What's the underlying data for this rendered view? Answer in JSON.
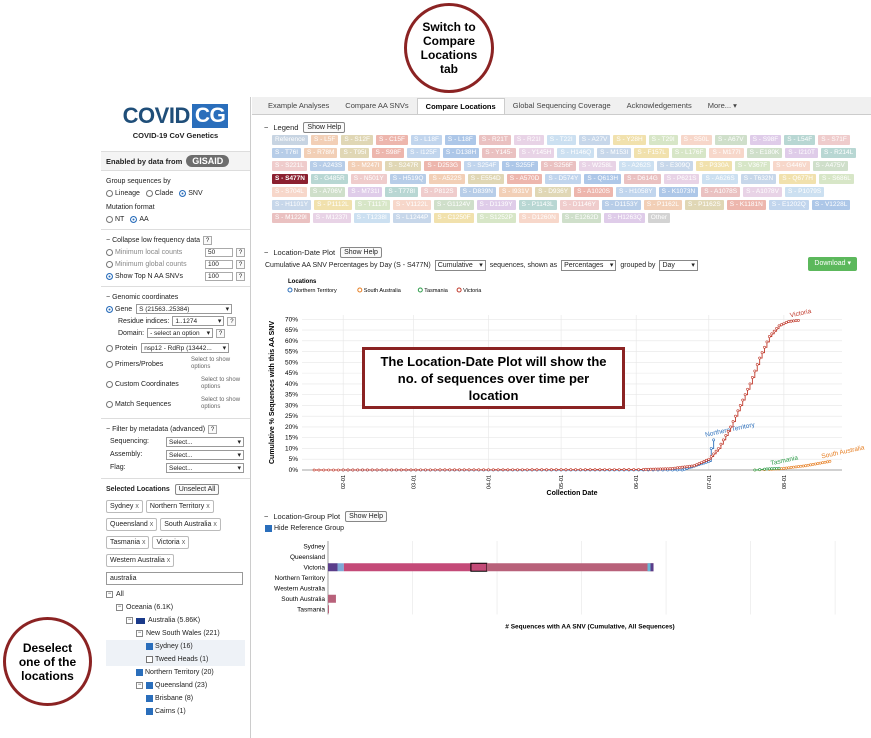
{
  "callouts": {
    "tab": "Switch to Compare Locations tab",
    "plot": "The Location-Date Plot will show the no. of sequences over time per location",
    "deselect": "Deselect one of the locations"
  },
  "sidebar": {
    "logo_main": "COVID",
    "logo_cg": "CG",
    "logo_sub": "COVID-19 CoV Genetics",
    "enabled_by": "Enabled by data from",
    "gisaid": "GISAID",
    "group_by": {
      "label": "Group sequences by",
      "options": [
        "Lineage",
        "Clade",
        "SNV"
      ],
      "selected": "SNV"
    },
    "mutation_format": {
      "label": "Mutation format",
      "options": [
        "NT",
        "AA"
      ],
      "selected": "AA"
    },
    "low_freq": {
      "title": "Collapse low frequency data",
      "help": "?",
      "rows": [
        {
          "label": "Minimum local counts",
          "value": "50"
        },
        {
          "label": "Minimum global counts",
          "value": "100"
        },
        {
          "label": "Show Top N AA SNVs",
          "value": "100"
        }
      ]
    },
    "genomic": {
      "title": "Genomic coordinates",
      "gene_label": "Gene",
      "gene_value": "S  (21563..25384)",
      "residue_label": "Residue indices:",
      "residue_value": "1..1274",
      "domain_label": "Domain:",
      "domain_value": "- select an option",
      "protein_label": "Protein",
      "protein_value": "nsp12 - RdRp  (13442...",
      "primers_label": "Primers/Probes",
      "custom_label": "Custom Coordinates",
      "match_label": "Match Sequences",
      "select_note": "Select to show options"
    },
    "metadata": {
      "title": "Filter by metadata (advanced)",
      "help": "?",
      "rows": [
        {
          "label": "Sequencing:",
          "value": "Select..."
        },
        {
          "label": "Assembly:",
          "value": "Select..."
        },
        {
          "label": "Flag:",
          "value": "Select..."
        }
      ]
    },
    "locations": {
      "title": "Selected Locations",
      "unselect_all": "Unselect All",
      "selected": [
        "Sydney",
        "Northern Territory",
        "Queensland",
        "South Australia",
        "Tasmania",
        "Victoria",
        "Western Australia"
      ],
      "remove_glyph": "x",
      "search_value": "australia",
      "tree": [
        {
          "label": "All",
          "toggle": "−",
          "level": 0
        },
        {
          "label": "Oceania  (6.1K)",
          "toggle": "−",
          "level": 1
        },
        {
          "label": "Australia  (5.86K)",
          "toggle": "−",
          "level": 2,
          "flag": true
        },
        {
          "label": "New South Wales  (221)",
          "toggle": "−",
          "level": 3
        },
        {
          "label": "Sydney  (16)",
          "check": true,
          "level": 4,
          "hl": true
        },
        {
          "label": "Tweed Heads  (1)",
          "check": false,
          "level": 4,
          "hl": true
        },
        {
          "label": "Northern Territory  (20)",
          "check": true,
          "level": 3
        },
        {
          "label": "Queensland  (23)",
          "check": true,
          "level": 3,
          "toggle": "−"
        },
        {
          "label": "Brisbane  (8)",
          "check": true,
          "level": 4
        },
        {
          "label": "Cairns  (1)",
          "check": true,
          "level": 4
        }
      ]
    }
  },
  "tabs": [
    "Example Analyses",
    "Compare AA SNVs",
    "Compare Locations",
    "Global Sequencing Coverage",
    "Acknowledgements",
    "More..."
  ],
  "active_tab": "Compare Locations",
  "legend": {
    "title": "Legend",
    "show_help": "Show Help",
    "items": [
      "Reference",
      "S - L5F",
      "S - S12F",
      "S - C15F",
      "S - L18F",
      "S - L18F",
      "S - R21T",
      "S - R21I",
      "S - T22I",
      "S - A27V",
      "S - Y28H",
      "S - T29I",
      "S - S50L",
      "S - A67V",
      "S - S98F",
      "S - L54F",
      "S - S71F",
      "S - T76I",
      "S - R78M",
      "S - T95I",
      "S - S98F",
      "S - I125F",
      "S - D138H",
      "S - Y145-",
      "S - Y145H",
      "S - H146Q",
      "S - M153I",
      "S - F157L",
      "S - L176F",
      "S - M177I",
      "S - E180K",
      "S - I210T",
      "S - R214L",
      "S - S221L",
      "S - A243S",
      "S - M247I",
      "S - S247R",
      "S - D253G",
      "S - S254F",
      "S - S255F",
      "S - S256F",
      "S - W258L",
      "S - A262S",
      "S - E309Q",
      "S - P330A",
      "S - V367F",
      "S - G446V",
      "S - A475V",
      "S - S477N",
      "S - G485R",
      "S - N501Y",
      "S - H519Q",
      "S - A522S",
      "S - E554D",
      "S - A570D",
      "S - D574Y",
      "S - Q613H",
      "S - D614G",
      "S - P621S",
      "S - A626S",
      "S - T632N",
      "S - Q677H",
      "S - S686L",
      "S - S704L",
      "S - A706V",
      "S - M731I",
      "S - T778I",
      "S - P812S",
      "S - D839N",
      "S - I931V",
      "S - D936Y",
      "S - A1020S",
      "S - H1058Y",
      "S - K1073N",
      "S - A1078S",
      "S - A1078V",
      "S - P1079S",
      "S - H1101Y",
      "S - P1112L",
      "S - T1117I",
      "S - V1122L",
      "S - G1124V",
      "S - D1139Y",
      "S - P1143L",
      "S - D1146Y",
      "S - D1153Y",
      "S - P1162L",
      "S - P1162S",
      "S - K1181N",
      "S - E1202Q",
      "S - V1228L",
      "S - M1229I",
      "S - M1237I",
      "S - T1238I",
      "S - L1244P",
      "S - C1250F",
      "S - S1252P",
      "S - D1260N",
      "S - E1262D",
      "S - H1263Q",
      "Other"
    ],
    "selected_item": "S - S477N"
  },
  "location_date": {
    "title": "Location-Date Plot",
    "show_help": "Show Help",
    "toolbar_prefix": "Cumulative AA SNV Percentages by Day (S - S477N)",
    "mode": "Cumulative",
    "mid1": "sequences, shown as",
    "unit": "Percentages",
    "mid2": "grouped by",
    "group": "Day",
    "download": "Download"
  },
  "location_group": {
    "title": "Location-Group Plot",
    "show_help": "Show Help",
    "hide_ref": "Hide Reference Group"
  },
  "colors": {
    "victoria": "#c0392b",
    "northern_territory": "#2c6fbb",
    "tasmania": "#2e9c4a",
    "south_australia": "#e67e22",
    "accent_red": "#8b2323"
  },
  "chart_data": [
    {
      "type": "line",
      "title": "",
      "xlabel": "Collection Date",
      "ylabel": "Cumulative % Sequences with this AA SNV",
      "x_ticks": [
        "02-01",
        "03-01",
        "04-01",
        "05-01",
        "06-01",
        "07-01",
        "08-01"
      ],
      "y_ticks": [
        "0%",
        "5%",
        "10%",
        "15%",
        "20%",
        "25%",
        "30%",
        "35%",
        "40%",
        "45%",
        "50%",
        "55%",
        "60%",
        "65%",
        "70%"
      ],
      "ylim": [
        0,
        72
      ],
      "legend_title": "Locations",
      "legend_placement": "top-left",
      "grid": true,
      "series": [
        {
          "name": "Northern Territory",
          "points": [
            [
              "02-01",
              0
            ],
            [
              "06-20",
              0
            ],
            [
              "07-01",
              4
            ],
            [
              "07-02",
              10
            ],
            [
              "07-03",
              14
            ]
          ],
          "label": "Northern Territory"
        },
        {
          "name": "South Australia",
          "points": [
            [
              "07-20",
              0
            ],
            [
              "07-30",
              0.5
            ],
            [
              "08-10",
              2
            ],
            [
              "08-20",
              4
            ]
          ],
          "label": "South Australia"
        },
        {
          "name": "Tasmania",
          "points": [
            [
              "07-20",
              0
            ],
            [
              "07-25",
              0.5
            ],
            [
              "07-30",
              0.8
            ]
          ],
          "label": "Tasmania"
        },
        {
          "name": "Victoria",
          "points": [
            [
              "01-20",
              0
            ],
            [
              "06-01",
              0.2
            ],
            [
              "06-15",
              0.6
            ],
            [
              "06-25",
              2
            ],
            [
              "07-01",
              5
            ],
            [
              "07-05",
              10
            ],
            [
              "07-10",
              20
            ],
            [
              "07-14",
              30
            ],
            [
              "07-18",
              40
            ],
            [
              "07-22",
              52
            ],
            [
              "07-26",
              62
            ],
            [
              "07-30",
              67
            ],
            [
              "08-03",
              69
            ],
            [
              "08-07",
              69.5
            ]
          ],
          "label": "Victoria"
        }
      ]
    },
    {
      "type": "bar",
      "title": "",
      "xlabel": "# Sequences with AA SNV (Cumulative, All Sequences)",
      "ylabel": "",
      "categories": [
        "Sydney",
        "Queensland",
        "Victoria",
        "Northern Territory",
        "Western Australia",
        "South Australia",
        "Tasmania"
      ],
      "values": [
        0,
        0,
        4100,
        0,
        0,
        100,
        5
      ],
      "selected_segment": [
        1800,
        2000
      ]
    }
  ]
}
